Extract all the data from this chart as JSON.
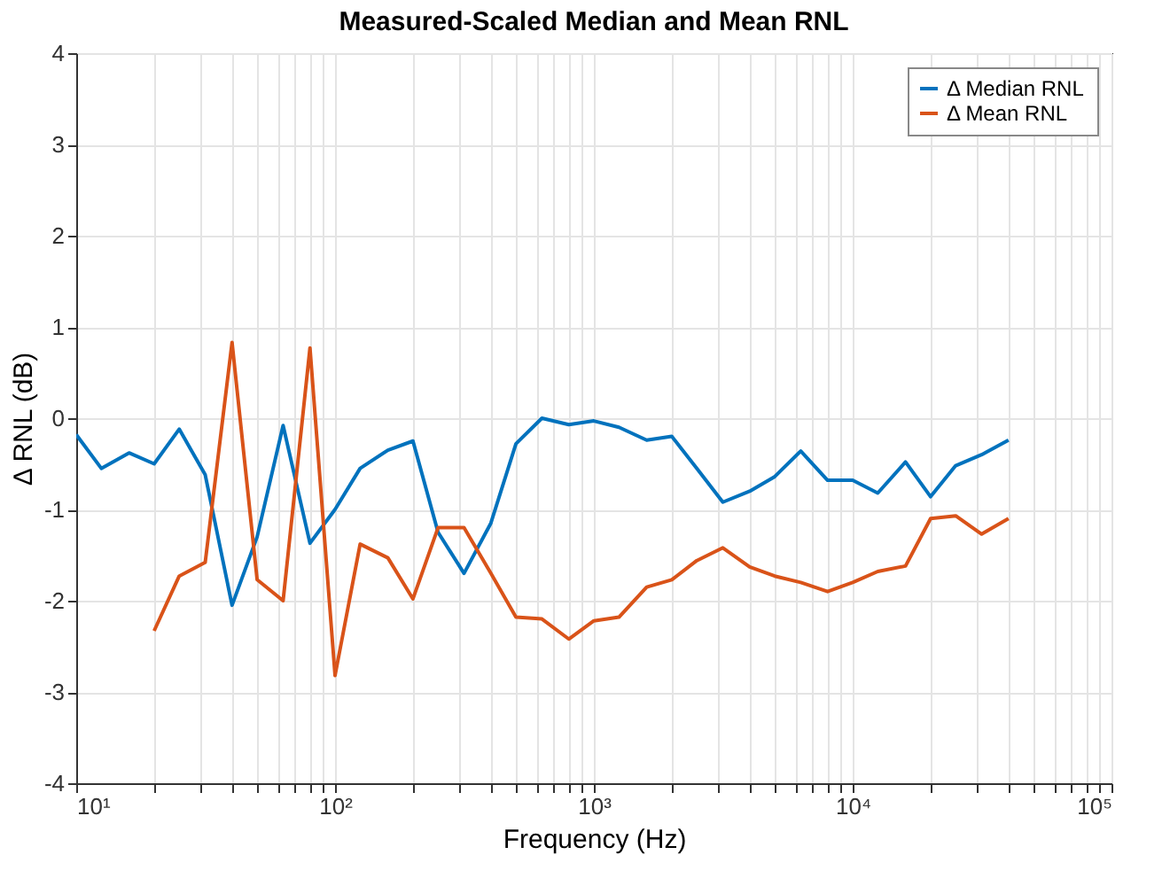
{
  "chart_data": {
    "type": "line",
    "title": "Measured-Scaled Median and Mean RNL",
    "xlabel": "Frequency (Hz)",
    "ylabel": "Δ RNL (dB)",
    "x": [
      10,
      12.5,
      16,
      20,
      25,
      31.5,
      40,
      50,
      63,
      80,
      100,
      125,
      160,
      200,
      250,
      315,
      400,
      500,
      630,
      800,
      1000,
      1250,
      1600,
      2000,
      2500,
      3150,
      4000,
      5000,
      6300,
      8000,
      10000,
      12500,
      16000,
      20000,
      25000,
      31500,
      40000
    ],
    "series": [
      {
        "name": "Δ Median RNL",
        "color": "#0072bd",
        "values": [
          -0.18,
          -0.55,
          -0.38,
          -0.5,
          -0.12,
          -0.62,
          -2.05,
          -1.3,
          -0.08,
          -1.37,
          -1.0,
          -0.55,
          -0.35,
          -0.25,
          -1.25,
          -1.7,
          -1.15,
          -0.28,
          0.0,
          -0.07,
          -0.03,
          -0.1,
          -0.24,
          -0.2,
          -0.55,
          -0.92,
          -0.8,
          -0.64,
          -0.36,
          -0.68,
          -0.68,
          -0.82,
          -0.48,
          -0.86,
          -0.52,
          -0.4,
          -0.24
        ]
      },
      {
        "name": "Δ Mean RNL",
        "color": "#d95319",
        "values": [
          null,
          null,
          null,
          -2.33,
          -1.73,
          -1.58,
          0.83,
          -1.77,
          -2.0,
          0.77,
          -2.82,
          -1.38,
          -1.53,
          -1.98,
          -1.2,
          -1.2,
          -1.7,
          -2.18,
          -2.2,
          -2.42,
          -2.22,
          -2.18,
          -1.85,
          -1.77,
          -1.56,
          -1.42,
          -1.63,
          -1.73,
          -1.8,
          -1.9,
          -1.8,
          -1.68,
          -1.62,
          -1.1,
          -1.07,
          -1.27,
          -1.1
        ]
      }
    ],
    "log": "x",
    "xlim": [
      10,
      100000
    ],
    "ylim": [
      -4,
      4
    ],
    "xticks": [
      {
        "value": 10,
        "label": "10¹"
      },
      {
        "value": 20,
        "label": null
      },
      {
        "value": 30,
        "label": null
      },
      {
        "value": 40,
        "label": null
      },
      {
        "value": 50,
        "label": null
      },
      {
        "value": 60,
        "label": null
      },
      {
        "value": 70,
        "label": null
      },
      {
        "value": 80,
        "label": null
      },
      {
        "value": 90,
        "label": null
      },
      {
        "value": 100,
        "label": "10²"
      },
      {
        "value": 200,
        "label": null
      },
      {
        "value": 300,
        "label": null
      },
      {
        "value": 400,
        "label": null
      },
      {
        "value": 500,
        "label": null
      },
      {
        "value": 600,
        "label": null
      },
      {
        "value": 700,
        "label": null
      },
      {
        "value": 800,
        "label": null
      },
      {
        "value": 900,
        "label": null
      },
      {
        "value": 1000,
        "label": "10³"
      },
      {
        "value": 2000,
        "label": null
      },
      {
        "value": 3000,
        "label": null
      },
      {
        "value": 4000,
        "label": null
      },
      {
        "value": 5000,
        "label": null
      },
      {
        "value": 6000,
        "label": null
      },
      {
        "value": 7000,
        "label": null
      },
      {
        "value": 8000,
        "label": null
      },
      {
        "value": 9000,
        "label": null
      },
      {
        "value": 10000,
        "label": "10⁴"
      },
      {
        "value": 20000,
        "label": null
      },
      {
        "value": 30000,
        "label": null
      },
      {
        "value": 40000,
        "label": null
      },
      {
        "value": 50000,
        "label": null
      },
      {
        "value": 60000,
        "label": null
      },
      {
        "value": 70000,
        "label": null
      },
      {
        "value": 80000,
        "label": null
      },
      {
        "value": 90000,
        "label": null
      },
      {
        "value": 100000,
        "label": "10⁵"
      }
    ],
    "yticks": [
      -4,
      -3,
      -2,
      -1,
      0,
      1,
      2,
      3,
      4
    ],
    "grid": true,
    "legend": "top right",
    "marker": "none",
    "line_style": "solid"
  }
}
